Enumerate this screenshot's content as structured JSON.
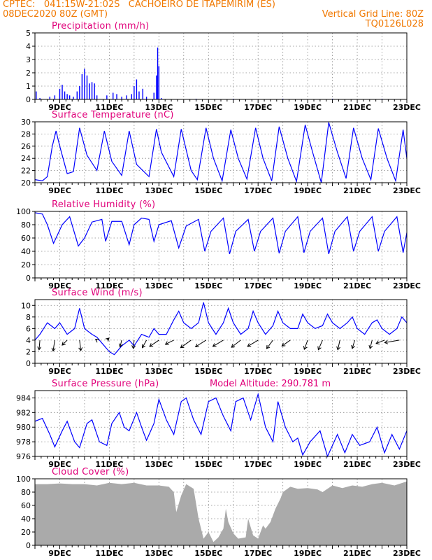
{
  "header": {
    "line1_left": "CPTEC:   041:15W-21:02S   CACHOEIRO DE ITAPEMIRIM (ES)",
    "line2_left": "08DEC2020 80Z (GMT)",
    "line2_right": "Vertical Grid Line: 80Z",
    "line3_right": "TQ0126L028"
  },
  "colors": {
    "header": "#f07800",
    "title": "#e0007a",
    "series": "#0000ff",
    "cloud": "#aaaaaa",
    "grid": "#888888"
  },
  "day_ticks": [
    "9DEC",
    "11DEC",
    "13DEC",
    "15DEC",
    "17DEC",
    "19DEC",
    "21DEC",
    "23DEC"
  ],
  "chart_data": [
    {
      "id": "precip",
      "type": "bar",
      "title": "Precipitation (mm/h)",
      "ylim": [
        0,
        5
      ],
      "yticks": [
        0,
        1,
        2,
        3,
        4,
        5
      ],
      "x_unit": "day of December 2020",
      "xlim": [
        8,
        23
      ],
      "points": [
        [
          8.05,
          0.6
        ],
        [
          8.2,
          0.1
        ],
        [
          8.6,
          0.2
        ],
        [
          8.8,
          0.3
        ],
        [
          9.0,
          0.8
        ],
        [
          9.1,
          1.1
        ],
        [
          9.2,
          0.6
        ],
        [
          9.3,
          0.4
        ],
        [
          9.4,
          0.3
        ],
        [
          9.55,
          0.2
        ],
        [
          9.7,
          0.6
        ],
        [
          9.8,
          1.0
        ],
        [
          9.9,
          1.9
        ],
        [
          10.0,
          2.3
        ],
        [
          10.1,
          1.8
        ],
        [
          10.2,
          1.2
        ],
        [
          10.3,
          1.3
        ],
        [
          10.4,
          1.2
        ],
        [
          10.5,
          0.3
        ],
        [
          10.9,
          0.3
        ],
        [
          11.15,
          0.5
        ],
        [
          11.3,
          0.4
        ],
        [
          11.5,
          0.2
        ],
        [
          11.7,
          0.3
        ],
        [
          11.9,
          0.4
        ],
        [
          12.0,
          1.0
        ],
        [
          12.1,
          1.5
        ],
        [
          12.2,
          0.6
        ],
        [
          12.35,
          0.8
        ],
        [
          12.5,
          0.2
        ],
        [
          12.8,
          0.5
        ],
        [
          12.9,
          1.8
        ],
        [
          12.95,
          3.9
        ],
        [
          13.0,
          2.5
        ],
        [
          13.1,
          0.1
        ],
        [
          14.5,
          0.05
        ],
        [
          16.0,
          0.05
        ],
        [
          18.0,
          0.05
        ],
        [
          20.0,
          0.05
        ],
        [
          22.0,
          0.05
        ]
      ]
    },
    {
      "id": "temp",
      "type": "line",
      "title": "Surface Temperature (nC)",
      "ylim": [
        20,
        30
      ],
      "yticks": [
        20,
        22,
        24,
        26,
        28,
        30
      ],
      "x_unit": "day of December 2020",
      "xlim": [
        8,
        23
      ],
      "points": [
        [
          8,
          20.5
        ],
        [
          8.3,
          20.3
        ],
        [
          8.5,
          21
        ],
        [
          8.7,
          26
        ],
        [
          8.85,
          28.5
        ],
        [
          9.0,
          26
        ],
        [
          9.3,
          21.5
        ],
        [
          9.55,
          21.8
        ],
        [
          9.8,
          29
        ],
        [
          10.1,
          24.5
        ],
        [
          10.5,
          22
        ],
        [
          10.8,
          28.5
        ],
        [
          11.1,
          23.5
        ],
        [
          11.5,
          21.2
        ],
        [
          11.8,
          28.5
        ],
        [
          12.1,
          23
        ],
        [
          12.6,
          21
        ],
        [
          12.9,
          28.8
        ],
        [
          13.1,
          25
        ],
        [
          13.6,
          21
        ],
        [
          13.9,
          28.8
        ],
        [
          14.3,
          22
        ],
        [
          14.55,
          20.5
        ],
        [
          14.9,
          29
        ],
        [
          15.2,
          24
        ],
        [
          15.55,
          20.3
        ],
        [
          15.9,
          28.7
        ],
        [
          16.2,
          24
        ],
        [
          16.55,
          20.6
        ],
        [
          16.9,
          29
        ],
        [
          17.2,
          24
        ],
        [
          17.55,
          20.3
        ],
        [
          17.85,
          29.2
        ],
        [
          18.2,
          24
        ],
        [
          18.55,
          20.2
        ],
        [
          18.9,
          29.5
        ],
        [
          19.2,
          25
        ],
        [
          19.55,
          20
        ],
        [
          19.85,
          29.9
        ],
        [
          20.2,
          25
        ],
        [
          20.55,
          20.7
        ],
        [
          20.85,
          29
        ],
        [
          21.2,
          24
        ],
        [
          21.55,
          20.5
        ],
        [
          21.85,
          28.9
        ],
        [
          22.2,
          24
        ],
        [
          22.55,
          20.3
        ],
        [
          22.85,
          28.7
        ],
        [
          23.0,
          24
        ]
      ]
    },
    {
      "id": "rh",
      "type": "line",
      "title": "Relative Humidity (%)",
      "ylim": [
        0,
        100
      ],
      "yticks": [
        0,
        20,
        40,
        60,
        80,
        100
      ],
      "x_unit": "day of December 2020",
      "xlim": [
        8,
        23
      ],
      "points": [
        [
          8,
          98
        ],
        [
          8.3,
          96
        ],
        [
          8.5,
          80
        ],
        [
          8.75,
          52
        ],
        [
          9.1,
          80
        ],
        [
          9.4,
          92
        ],
        [
          9.75,
          48
        ],
        [
          10.0,
          60
        ],
        [
          10.3,
          84
        ],
        [
          10.7,
          88
        ],
        [
          10.85,
          55
        ],
        [
          11.1,
          85
        ],
        [
          11.5,
          85
        ],
        [
          11.8,
          50
        ],
        [
          12.0,
          80
        ],
        [
          12.3,
          90
        ],
        [
          12.6,
          88
        ],
        [
          12.8,
          55
        ],
        [
          13.0,
          80
        ],
        [
          13.5,
          86
        ],
        [
          13.8,
          45
        ],
        [
          14.1,
          78
        ],
        [
          14.6,
          88
        ],
        [
          14.85,
          40
        ],
        [
          15.1,
          70
        ],
        [
          15.6,
          90
        ],
        [
          15.85,
          36
        ],
        [
          16.1,
          70
        ],
        [
          16.6,
          88
        ],
        [
          16.85,
          40
        ],
        [
          17.1,
          70
        ],
        [
          17.6,
          90
        ],
        [
          17.85,
          37
        ],
        [
          18.1,
          70
        ],
        [
          18.6,
          92
        ],
        [
          18.85,
          38
        ],
        [
          19.1,
          70
        ],
        [
          19.6,
          90
        ],
        [
          19.85,
          36
        ],
        [
          20.1,
          70
        ],
        [
          20.6,
          92
        ],
        [
          20.85,
          40
        ],
        [
          21.1,
          70
        ],
        [
          21.6,
          92
        ],
        [
          21.85,
          40
        ],
        [
          22.1,
          70
        ],
        [
          22.6,
          92
        ],
        [
          22.85,
          38
        ],
        [
          23.0,
          68
        ]
      ]
    },
    {
      "id": "wind",
      "type": "line",
      "title": "Surface Wind (m/s)",
      "ylim": [
        0,
        11
      ],
      "yticks": [
        0,
        2,
        4,
        6,
        8,
        10
      ],
      "x_unit": "day of December 2020",
      "xlim": [
        8,
        23
      ],
      "points": [
        [
          8,
          4
        ],
        [
          8.2,
          5
        ],
        [
          8.5,
          7
        ],
        [
          8.8,
          6
        ],
        [
          9.0,
          7
        ],
        [
          9.3,
          5
        ],
        [
          9.6,
          6
        ],
        [
          9.8,
          9.5
        ],
        [
          10.0,
          6
        ],
        [
          10.3,
          5
        ],
        [
          10.5,
          4.5
        ],
        [
          10.8,
          3
        ],
        [
          11.0,
          2
        ],
        [
          11.2,
          1.5
        ],
        [
          11.5,
          3
        ],
        [
          11.8,
          4
        ],
        [
          12.0,
          3
        ],
        [
          12.3,
          5
        ],
        [
          12.6,
          4.5
        ],
        [
          12.8,
          6
        ],
        [
          13.0,
          5
        ],
        [
          13.3,
          5
        ],
        [
          13.6,
          7.5
        ],
        [
          13.8,
          9
        ],
        [
          14.0,
          7
        ],
        [
          14.3,
          6
        ],
        [
          14.6,
          7
        ],
        [
          14.8,
          10.5
        ],
        [
          15.0,
          7
        ],
        [
          15.3,
          5
        ],
        [
          15.6,
          7
        ],
        [
          15.8,
          9.5
        ],
        [
          16.0,
          7
        ],
        [
          16.3,
          5
        ],
        [
          16.6,
          6
        ],
        [
          16.8,
          9
        ],
        [
          17.0,
          7
        ],
        [
          17.3,
          5
        ],
        [
          17.6,
          6.5
        ],
        [
          17.8,
          9
        ],
        [
          18.0,
          7
        ],
        [
          18.3,
          6
        ],
        [
          18.6,
          6
        ],
        [
          18.8,
          8.5
        ],
        [
          19.0,
          7
        ],
        [
          19.3,
          6
        ],
        [
          19.6,
          6.5
        ],
        [
          19.8,
          8.5
        ],
        [
          20.0,
          7
        ],
        [
          20.3,
          6
        ],
        [
          20.6,
          7
        ],
        [
          20.8,
          8
        ],
        [
          21.0,
          6
        ],
        [
          21.3,
          5
        ],
        [
          21.6,
          7
        ],
        [
          21.8,
          7.5
        ],
        [
          22.0,
          6
        ],
        [
          22.3,
          5
        ],
        [
          22.6,
          6
        ],
        [
          22.8,
          8
        ],
        [
          23.0,
          7
        ]
      ],
      "vectors": [
        [
          8.2,
          -0.2,
          -2.3
        ],
        [
          8.8,
          -0.4,
          -2.6
        ],
        [
          9.3,
          -1.2,
          -1.2
        ],
        [
          9.8,
          0.3,
          -2.5
        ],
        [
          10.5,
          -0.3,
          0.2
        ],
        [
          10.9,
          0.5,
          0.5
        ],
        [
          11.5,
          -0.4,
          -1.6
        ],
        [
          12.0,
          -0.2,
          -2.0
        ],
        [
          12.5,
          -1.0,
          -1.8
        ],
        [
          13.0,
          -2.2,
          -1.5
        ],
        [
          13.6,
          -2.0,
          -1.0
        ],
        [
          14.3,
          -2.5,
          -1.8
        ],
        [
          14.9,
          -2.5,
          -1.6
        ],
        [
          15.6,
          -2.5,
          -1.5
        ],
        [
          16.3,
          -2.2,
          -1.7
        ],
        [
          17.0,
          -2.5,
          -1.5
        ],
        [
          17.6,
          -1.5,
          -2.0
        ],
        [
          18.3,
          -2.0,
          -1.4
        ],
        [
          19.0,
          -0.8,
          -2.2
        ],
        [
          19.6,
          -1.0,
          -2.3
        ],
        [
          20.3,
          -0.5,
          -2.3
        ],
        [
          20.9,
          -0.6,
          -2.0
        ],
        [
          21.6,
          -0.5,
          -2.0
        ],
        [
          22.1,
          -2.0,
          -0.8
        ],
        [
          22.7,
          -3.5,
          -0.6
        ]
      ]
    },
    {
      "id": "pressure",
      "type": "line",
      "title": "Surface Pressure (hPa)",
      "subtitle": "Model Altitude: 290.781 m",
      "ylim": [
        976,
        985
      ],
      "yticks": [
        976,
        978,
        980,
        982,
        984
      ],
      "x_unit": "day of December 2020",
      "xlim": [
        8,
        23
      ],
      "points": [
        [
          8,
          980.8
        ],
        [
          8.3,
          981.2
        ],
        [
          8.6,
          979
        ],
        [
          8.8,
          977.3
        ],
        [
          9.1,
          979.5
        ],
        [
          9.3,
          980.8
        ],
        [
          9.6,
          978
        ],
        [
          9.8,
          977.2
        ],
        [
          10.1,
          980.5
        ],
        [
          10.3,
          981
        ],
        [
          10.6,
          978
        ],
        [
          10.9,
          977.5
        ],
        [
          11.1,
          980.5
        ],
        [
          11.4,
          982
        ],
        [
          11.6,
          980
        ],
        [
          11.8,
          979.5
        ],
        [
          12.1,
          982
        ],
        [
          12.3,
          980
        ],
        [
          12.5,
          978.2
        ],
        [
          12.8,
          980.5
        ],
        [
          13.0,
          983.8
        ],
        [
          13.3,
          981
        ],
        [
          13.6,
          979
        ],
        [
          13.9,
          983.5
        ],
        [
          14.1,
          984
        ],
        [
          14.4,
          981
        ],
        [
          14.7,
          979
        ],
        [
          15.0,
          983.5
        ],
        [
          15.3,
          984
        ],
        [
          15.6,
          981.5
        ],
        [
          15.9,
          979.5
        ],
        [
          16.1,
          983.5
        ],
        [
          16.4,
          984
        ],
        [
          16.7,
          981
        ],
        [
          17.0,
          984.5
        ],
        [
          17.3,
          980
        ],
        [
          17.6,
          978
        ],
        [
          17.8,
          983.5
        ],
        [
          18.1,
          980
        ],
        [
          18.4,
          978
        ],
        [
          18.6,
          978.5
        ],
        [
          18.8,
          976.2
        ],
        [
          19.1,
          978
        ],
        [
          19.5,
          979.5
        ],
        [
          19.8,
          976
        ],
        [
          20.2,
          979
        ],
        [
          20.5,
          976.5
        ],
        [
          20.8,
          979
        ],
        [
          21.1,
          977.5
        ],
        [
          21.5,
          978
        ],
        [
          21.8,
          980
        ],
        [
          22.1,
          976.5
        ],
        [
          22.4,
          979
        ],
        [
          22.7,
          977
        ],
        [
          23.0,
          979.5
        ]
      ]
    },
    {
      "id": "cloud",
      "type": "area",
      "title": "Cloud Cover (%)",
      "ylim": [
        0,
        100
      ],
      "yticks": [
        0,
        20,
        40,
        60,
        80,
        100
      ],
      "x_unit": "day of December 2020",
      "xlim": [
        8,
        23
      ],
      "points": [
        [
          8,
          92
        ],
        [
          8.5,
          92
        ],
        [
          9.0,
          93
        ],
        [
          9.5,
          92
        ],
        [
          10.0,
          92
        ],
        [
          10.5,
          90
        ],
        [
          11.0,
          94
        ],
        [
          11.5,
          92
        ],
        [
          12.0,
          94
        ],
        [
          12.5,
          90
        ],
        [
          13.0,
          90
        ],
        [
          13.4,
          88
        ],
        [
          13.6,
          80
        ],
        [
          13.7,
          50
        ],
        [
          13.9,
          75
        ],
        [
          14.1,
          92
        ],
        [
          14.4,
          85
        ],
        [
          14.6,
          40
        ],
        [
          14.8,
          10
        ],
        [
          15.0,
          20
        ],
        [
          15.2,
          5
        ],
        [
          15.4,
          12
        ],
        [
          15.6,
          25
        ],
        [
          15.7,
          55
        ],
        [
          15.8,
          35
        ],
        [
          16.0,
          18
        ],
        [
          16.2,
          10
        ],
        [
          16.5,
          12
        ],
        [
          16.6,
          40
        ],
        [
          16.8,
          15
        ],
        [
          17.0,
          10
        ],
        [
          17.2,
          30
        ],
        [
          17.3,
          25
        ],
        [
          17.5,
          35
        ],
        [
          17.7,
          55
        ],
        [
          17.9,
          70
        ],
        [
          18.0,
          80
        ],
        [
          18.3,
          88
        ],
        [
          18.6,
          85
        ],
        [
          19.0,
          86
        ],
        [
          19.4,
          84
        ],
        [
          19.6,
          80
        ],
        [
          20.0,
          90
        ],
        [
          20.4,
          86
        ],
        [
          20.8,
          90
        ],
        [
          21.2,
          88
        ],
        [
          21.6,
          92
        ],
        [
          22.0,
          94
        ],
        [
          22.5,
          90
        ],
        [
          23.0,
          96
        ]
      ]
    }
  ]
}
